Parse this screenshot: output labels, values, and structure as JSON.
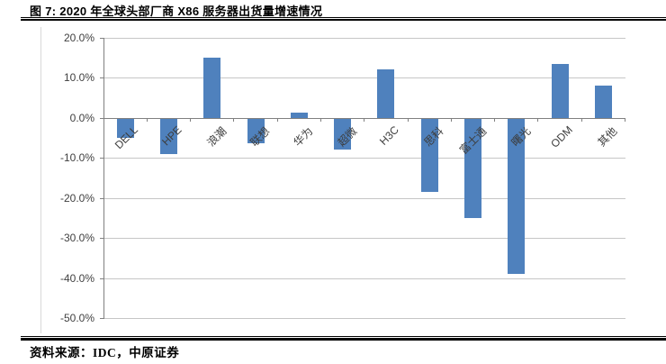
{
  "header": {
    "title": "图 7:  2020 年全球头部厂商 X86 服务器出货量增速情况"
  },
  "footer": {
    "source": "资料来源：IDC，中原证券"
  },
  "chart_data": {
    "type": "bar",
    "title": "2020 年全球头部厂商 X86 服务器出货量增速情况",
    "categories": [
      "DELL",
      "HPE",
      "浪潮",
      "联想",
      "华为",
      "超微",
      "H3C",
      "思科",
      "富士通",
      "曙光",
      "ODM",
      "其他"
    ],
    "values": [
      -5.0,
      -9.0,
      15.0,
      -6.4,
      1.3,
      -7.8,
      12.2,
      -18.5,
      -25.0,
      -38.9,
      13.5,
      8.1
    ],
    "unit": "%",
    "ylim": [
      -50,
      20
    ],
    "ytick_step": 10,
    "ytick_labels": [
      "20.0%",
      "10.0%",
      "0.0%",
      "-10.0%",
      "-20.0%",
      "-30.0%",
      "-40.0%",
      "-50.0%"
    ],
    "xlabel": "",
    "ylabel": "",
    "legend": "none",
    "grid": true,
    "bar_color": "#4F81BD",
    "gridline_color": "#C6C6C6",
    "axis_color": "#808080",
    "label_color": "#3d3d3d"
  }
}
